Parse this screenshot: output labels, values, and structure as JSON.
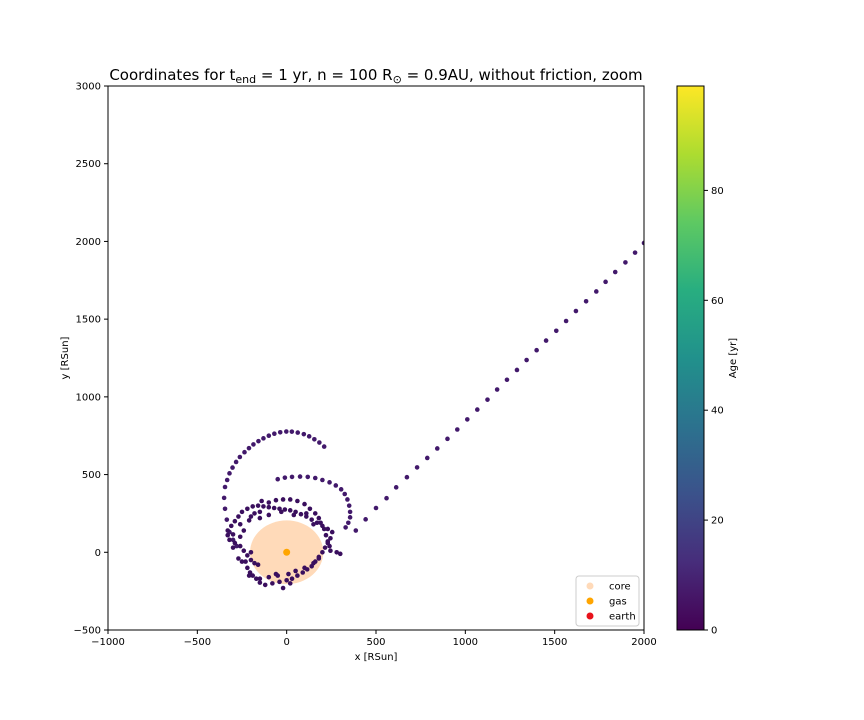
{
  "chart_data": {
    "type": "scatter",
    "title": {
      "prefix": "Coordinates for t",
      "sub": "end",
      "middle": " = 1 yr, n = 100 R",
      "sub2": "⊙",
      "suffix": " = 0.9AU, without friction, zoom"
    },
    "xlabel": "x [RSun]",
    "ylabel": "y [RSun]",
    "xlim": [
      -1000,
      2000
    ],
    "ylim": [
      -500,
      3000
    ],
    "xticks": [
      -1000,
      -500,
      0,
      500,
      1000,
      1500,
      2000
    ],
    "yticks": [
      -500,
      0,
      500,
      1000,
      1500,
      2000,
      2500,
      3000
    ],
    "grid": false,
    "legend_position": "bottom-right",
    "legend": [
      {
        "label": "core",
        "color": "#ffdab9"
      },
      {
        "label": "gas",
        "color": "#ffa500"
      },
      {
        "label": "earth",
        "color": "#e8121b"
      }
    ],
    "core_circle": {
      "x": 0,
      "y": 0,
      "radius": 205,
      "color": "#ffdab9"
    },
    "gas_point": {
      "x": 0,
      "y": 0,
      "color": "#ffa500"
    },
    "colorbar": {
      "label": "Age [yr]",
      "range": [
        0,
        99
      ],
      "ticks": [
        0,
        20,
        40,
        60,
        80
      ],
      "colormap": "viridis"
    },
    "series": [
      {
        "color": "#42196b",
        "points": [
          [
            -345,
            420
          ],
          [
            -333,
            465
          ],
          [
            -320,
            508
          ],
          [
            -303,
            545
          ],
          [
            -283,
            581
          ],
          [
            -262,
            613
          ],
          [
            -236,
            644
          ],
          [
            -211,
            670
          ],
          [
            -186,
            694
          ],
          [
            -158,
            715
          ],
          [
            -130,
            733
          ],
          [
            -100,
            750
          ],
          [
            -69,
            763
          ],
          [
            -36,
            772
          ],
          [
            -2,
            777
          ],
          [
            29,
            776
          ],
          [
            62,
            770
          ],
          [
            96,
            760
          ],
          [
            126,
            746
          ],
          [
            155,
            727
          ],
          [
            183,
            706
          ],
          [
            210,
            680
          ],
          [
            -350,
            350
          ],
          [
            -345,
            280
          ],
          [
            -335,
            210
          ],
          [
            -320,
            130
          ],
          [
            -300,
            80
          ],
          [
            -280,
            40
          ],
          [
            387,
            140
          ],
          [
            442,
            212
          ],
          [
            500,
            285
          ],
          [
            559,
            348
          ],
          [
            613,
            418
          ],
          [
            673,
            483
          ],
          [
            730,
            546
          ],
          [
            787,
            607
          ],
          [
            843,
            668
          ],
          [
            900,
            730
          ],
          [
            955,
            790
          ],
          [
            1011,
            855
          ],
          [
            1067,
            918
          ],
          [
            1124,
            982
          ],
          [
            1178,
            1047
          ],
          [
            1233,
            1110
          ],
          [
            1289,
            1173
          ],
          [
            1343,
            1237
          ],
          [
            1399,
            1300
          ],
          [
            1452,
            1362
          ],
          [
            1509,
            1425
          ],
          [
            1564,
            1488
          ],
          [
            1619,
            1552
          ],
          [
            1676,
            1615
          ],
          [
            1733,
            1678
          ],
          [
            1785,
            1740
          ],
          [
            1839,
            1803
          ],
          [
            1896,
            1865
          ],
          [
            1950,
            1928
          ],
          [
            2000,
            1990
          ],
          [
            -10,
            480
          ],
          [
            30,
            485
          ],
          [
            75,
            487
          ],
          [
            118,
            485
          ],
          [
            160,
            478
          ],
          [
            200,
            465
          ],
          [
            240,
            450
          ],
          [
            275,
            430
          ],
          [
            305,
            405
          ],
          [
            325,
            375
          ],
          [
            340,
            340
          ],
          [
            350,
            300
          ],
          [
            355,
            260
          ],
          [
            355,
            225
          ],
          [
            345,
            190
          ],
          [
            330,
            160
          ],
          [
            -50,
            470
          ]
        ]
      },
      {
        "color": "#3a0f5e",
        "points": [
          [
            -330,
            110
          ],
          [
            -300,
            115
          ],
          [
            -320,
            80
          ],
          [
            -290,
            60
          ],
          [
            -260,
            40
          ],
          [
            -240,
            10
          ],
          [
            -220,
            -20
          ],
          [
            -200,
            -50
          ],
          [
            -180,
            -70
          ],
          [
            -270,
            -40
          ],
          [
            -250,
            -60
          ],
          [
            -220,
            -100
          ],
          [
            -205,
            -130
          ],
          [
            -190,
            -150
          ],
          [
            -170,
            -170
          ],
          [
            -150,
            -195
          ],
          [
            -120,
            -210
          ],
          [
            -80,
            -200
          ],
          [
            -40,
            -190
          ],
          [
            0,
            -180
          ],
          [
            30,
            -170
          ],
          [
            60,
            -150
          ],
          [
            90,
            -130
          ],
          [
            115,
            -110
          ],
          [
            140,
            -90
          ],
          [
            160,
            -60
          ],
          [
            180,
            -30
          ],
          [
            200,
            0
          ],
          [
            215,
            30
          ],
          [
            230,
            60
          ],
          [
            245,
            90
          ],
          [
            255,
            130
          ],
          [
            230,
            150
          ],
          [
            200,
            170
          ],
          [
            170,
            190
          ],
          [
            140,
            210
          ],
          [
            110,
            230
          ],
          [
            80,
            245
          ],
          [
            50,
            260
          ],
          [
            20,
            270
          ],
          [
            -10,
            275
          ],
          [
            -40,
            280
          ],
          [
            -70,
            285
          ],
          [
            -100,
            290
          ],
          [
            -130,
            295
          ],
          [
            -160,
            300
          ],
          [
            -190,
            295
          ],
          [
            -220,
            280
          ],
          [
            -250,
            260
          ],
          [
            -270,
            230
          ],
          [
            -290,
            200
          ],
          [
            -310,
            170
          ],
          [
            -330,
            140
          ],
          [
            -300,
            30
          ],
          [
            -260,
            180
          ],
          [
            -210,
            205
          ],
          [
            -180,
            250
          ],
          [
            -150,
            260
          ],
          [
            -140,
            330
          ],
          [
            -100,
            320
          ],
          [
            -60,
            335
          ],
          [
            -20,
            340
          ],
          [
            20,
            340
          ],
          [
            60,
            330
          ],
          [
            100,
            310
          ],
          [
            130,
            280
          ],
          [
            160,
            250
          ],
          [
            180,
            220
          ],
          [
            190,
            190
          ],
          [
            210,
            150
          ],
          [
            220,
            110
          ],
          [
            230,
            70
          ],
          [
            240,
            40
          ],
          [
            245,
            10
          ],
          [
            280,
            0
          ],
          [
            300,
            -10
          ],
          [
            -230,
            -60
          ],
          [
            -210,
            -150
          ],
          [
            -150,
            -170
          ],
          [
            -100,
            -160
          ],
          [
            -50,
            -150
          ],
          [
            10,
            -140
          ],
          [
            50,
            -120
          ],
          [
            100,
            -100
          ],
          [
            150,
            -70
          ],
          [
            180,
            -40
          ],
          [
            -20,
            -230
          ],
          [
            20,
            -200
          ],
          [
            -60,
            -140
          ],
          [
            -160,
            -80
          ],
          [
            -200,
            0
          ],
          [
            -240,
            140
          ],
          [
            -260,
            100
          ],
          [
            -200,
            230
          ],
          [
            -150,
            220
          ],
          [
            -100,
            240
          ],
          [
            -30,
            260
          ],
          [
            40,
            240
          ],
          [
            110,
            250
          ],
          [
            150,
            180
          ]
        ]
      }
    ]
  }
}
